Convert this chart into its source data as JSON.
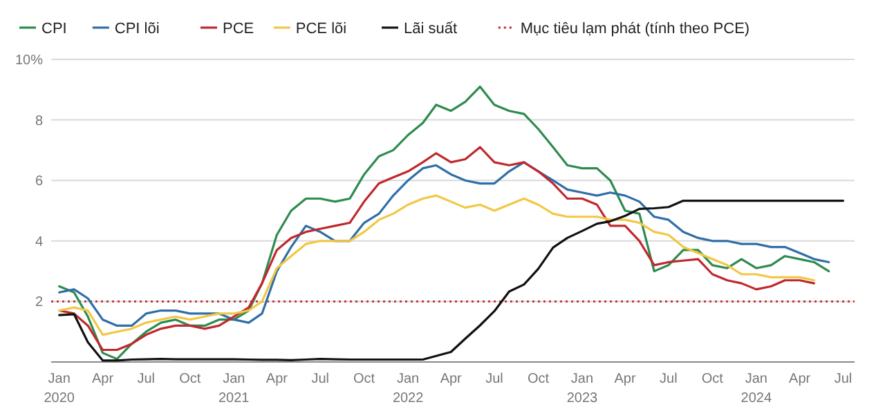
{
  "chart_data": {
    "type": "line",
    "x": [
      "2020-01",
      "2020-02",
      "2020-03",
      "2020-04",
      "2020-05",
      "2020-06",
      "2020-07",
      "2020-08",
      "2020-09",
      "2020-10",
      "2020-11",
      "2020-12",
      "2021-01",
      "2021-02",
      "2021-03",
      "2021-04",
      "2021-05",
      "2021-06",
      "2021-07",
      "2021-08",
      "2021-09",
      "2021-10",
      "2021-11",
      "2021-12",
      "2022-01",
      "2022-02",
      "2022-03",
      "2022-04",
      "2022-05",
      "2022-06",
      "2022-07",
      "2022-08",
      "2022-09",
      "2022-10",
      "2022-11",
      "2022-12",
      "2023-01",
      "2023-02",
      "2023-03",
      "2023-04",
      "2023-05",
      "2023-06",
      "2023-07",
      "2023-08",
      "2023-09",
      "2023-10",
      "2023-11",
      "2023-12",
      "2024-01",
      "2024-02",
      "2024-03",
      "2024-04",
      "2024-05",
      "2024-06",
      "2024-07"
    ],
    "series": [
      {
        "name": "CPI",
        "color": "#2e8b4e",
        "values": [
          2.5,
          2.3,
          1.5,
          0.3,
          0.1,
          0.6,
          1.0,
          1.3,
          1.4,
          1.2,
          1.2,
          1.4,
          1.4,
          1.7,
          2.6,
          4.2,
          5.0,
          5.4,
          5.4,
          5.3,
          5.4,
          6.2,
          6.8,
          7.0,
          7.5,
          7.9,
          8.5,
          8.3,
          8.6,
          9.1,
          8.5,
          8.3,
          8.2,
          7.7,
          7.1,
          6.5,
          6.4,
          6.4,
          6.0,
          5.0,
          4.9,
          3.0,
          3.2,
          3.7,
          3.7,
          3.2,
          3.1,
          3.4,
          3.1,
          3.2,
          3.5,
          3.4,
          3.3,
          3.0,
          null
        ]
      },
      {
        "name": "CPI lõi",
        "color": "#2f6ea6",
        "values": [
          2.3,
          2.4,
          2.1,
          1.4,
          1.2,
          1.2,
          1.6,
          1.7,
          1.7,
          1.6,
          1.6,
          1.6,
          1.4,
          1.3,
          1.6,
          3.0,
          3.8,
          4.5,
          4.3,
          4.0,
          4.0,
          4.6,
          4.9,
          5.5,
          6.0,
          6.4,
          6.5,
          6.2,
          6.0,
          5.9,
          5.9,
          6.3,
          6.6,
          6.3,
          6.0,
          5.7,
          5.6,
          5.5,
          5.6,
          5.5,
          5.3,
          4.8,
          4.7,
          4.3,
          4.1,
          4.0,
          4.0,
          3.9,
          3.9,
          3.8,
          3.8,
          3.6,
          3.4,
          3.3,
          null
        ]
      },
      {
        "name": "PCE",
        "color": "#c0282d",
        "values": [
          1.7,
          1.6,
          1.2,
          0.4,
          0.4,
          0.6,
          0.9,
          1.1,
          1.2,
          1.2,
          1.1,
          1.2,
          1.5,
          1.8,
          2.6,
          3.7,
          4.1,
          4.3,
          4.4,
          4.5,
          4.6,
          5.3,
          5.9,
          6.1,
          6.3,
          6.6,
          6.9,
          6.6,
          6.7,
          7.1,
          6.6,
          6.5,
          6.6,
          6.3,
          5.9,
          5.4,
          5.4,
          5.2,
          4.5,
          4.5,
          4.0,
          3.2,
          3.3,
          3.35,
          3.4,
          2.9,
          2.7,
          2.6,
          2.4,
          2.5,
          2.7,
          2.7,
          2.6,
          null,
          null
        ]
      },
      {
        "name": "PCE lõi",
        "color": "#f2c744",
        "values": [
          1.7,
          1.8,
          1.7,
          0.9,
          1.0,
          1.1,
          1.3,
          1.4,
          1.5,
          1.4,
          1.5,
          1.6,
          1.6,
          1.7,
          2.0,
          3.1,
          3.5,
          3.9,
          4.0,
          4.0,
          4.0,
          4.3,
          4.7,
          4.9,
          5.2,
          5.4,
          5.5,
          5.3,
          5.1,
          5.2,
          5.0,
          5.2,
          5.4,
          5.2,
          4.9,
          4.8,
          4.8,
          4.8,
          4.7,
          4.7,
          4.6,
          4.3,
          4.2,
          3.8,
          3.6,
          3.4,
          3.2,
          2.9,
          2.9,
          2.8,
          2.8,
          2.8,
          2.7,
          null,
          null
        ]
      },
      {
        "name": "Lãi suất",
        "color": "#111111",
        "values": [
          1.55,
          1.58,
          0.65,
          0.05,
          0.05,
          0.08,
          0.09,
          0.1,
          0.09,
          0.09,
          0.09,
          0.09,
          0.09,
          0.08,
          0.07,
          0.07,
          0.06,
          0.08,
          0.1,
          0.09,
          0.08,
          0.08,
          0.08,
          0.08,
          0.08,
          0.08,
          0.2,
          0.33,
          0.77,
          1.21,
          1.68,
          2.33,
          2.56,
          3.08,
          3.78,
          4.1,
          4.33,
          4.57,
          4.65,
          4.83,
          5.06,
          5.08,
          5.12,
          5.33,
          5.33,
          5.33,
          5.33,
          5.33,
          5.33,
          5.33,
          5.33,
          5.33,
          5.33,
          5.33,
          5.33
        ]
      }
    ],
    "ref_lines": [
      {
        "axis": "y",
        "value": 2,
        "label": "Mục tiêu lạm phát (tính theo PCE)",
        "color": "#c0282d",
        "line_style": "dotted"
      }
    ],
    "xlim": [
      "2019-12-15",
      "2024-07-25"
    ],
    "xticks": [
      {
        "value": "2020-01",
        "label": "Jan 2020"
      },
      {
        "value": "2020-04",
        "label": "Apr"
      },
      {
        "value": "2020-07",
        "label": "Jul"
      },
      {
        "value": "2020-10",
        "label": "Oct"
      },
      {
        "value": "2021-01",
        "label": "Jan 2021"
      },
      {
        "value": "2021-04",
        "label": "Apr"
      },
      {
        "value": "2021-07",
        "label": "Jul"
      },
      {
        "value": "2021-10",
        "label": "Oct"
      },
      {
        "value": "2022-01",
        "label": "Jan 2022"
      },
      {
        "value": "2022-04",
        "label": "Apr"
      },
      {
        "value": "2022-07",
        "label": "Jul"
      },
      {
        "value": "2022-10",
        "label": "Oct"
      },
      {
        "value": "2023-01",
        "label": "Jan 2023"
      },
      {
        "value": "2023-04",
        "label": "Apr"
      },
      {
        "value": "2023-07",
        "label": "Jul"
      },
      {
        "value": "2023-10",
        "label": "Oct"
      },
      {
        "value": "2024-01",
        "label": "Jan 2024"
      },
      {
        "value": "2024-04",
        "label": "Apr"
      },
      {
        "value": "2024-07",
        "label": "Jul"
      }
    ],
    "ylim": [
      0,
      10
    ],
    "yticks": [
      2,
      4,
      6,
      8,
      {
        "value": 10,
        "label": "10%"
      }
    ],
    "grid": "y",
    "legend": "top left",
    "line_style": "solid",
    "marker": "none"
  }
}
